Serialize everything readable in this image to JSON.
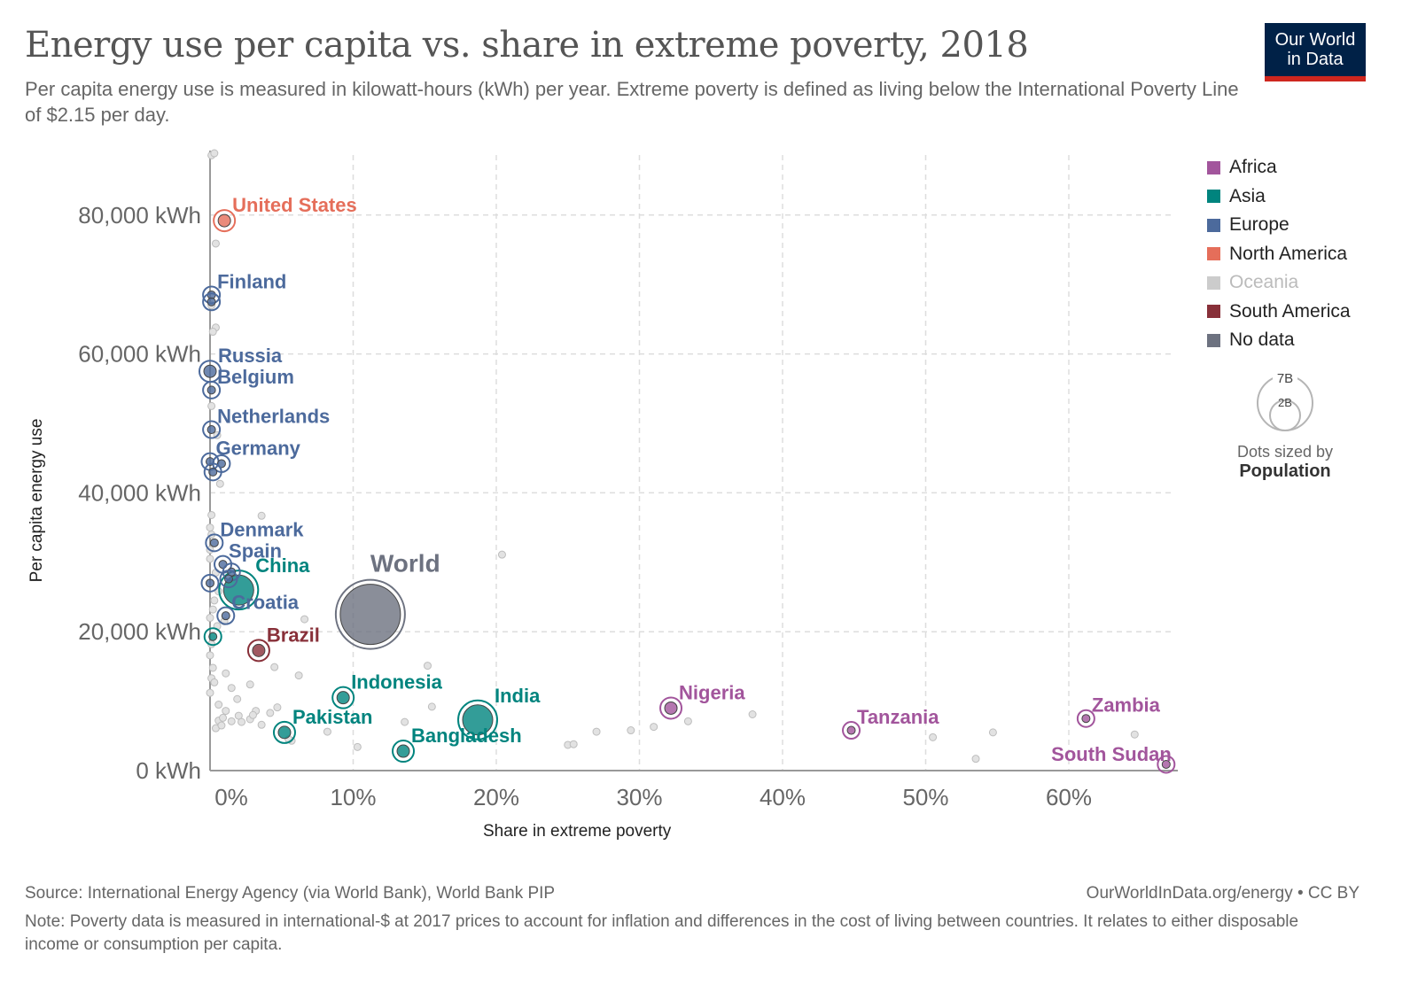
{
  "header": {
    "title": "Energy use per capita vs. share in extreme poverty, 2018",
    "subtitle": "Per capita energy use is measured in kilowatt-hours (kWh) per year. Extreme poverty is defined as living below the International Poverty Line of $2.15 per day.",
    "logo_line1": "Our World",
    "logo_line2": "in Data"
  },
  "legend": {
    "items": [
      {
        "label": "Africa",
        "color": "#a2559c"
      },
      {
        "label": "Asia",
        "color": "#00847e"
      },
      {
        "label": "Europe",
        "color": "#4c6a9c"
      },
      {
        "label": "North America",
        "color": "#e56e5a"
      },
      {
        "label": "Oceania",
        "color": "#cccccc",
        "muted": true
      },
      {
        "label": "South America",
        "color": "#883039"
      },
      {
        "label": "No data",
        "color": "#6d7280"
      }
    ],
    "size_legend": {
      "large_label": "7B",
      "small_label": "2B",
      "caption": "Dots sized by",
      "caption_bold": "Population"
    }
  },
  "footer": {
    "source": "Source: International Energy Agency (via World Bank), World Bank PIP",
    "credit": "OurWorldInData.org/energy • CC BY",
    "note": "Note: Poverty data is measured in international-$ at 2017 prices to account for inflation and differences in the cost of living between countries. It relates to either disposable income or consumption per capita."
  },
  "chart_data": {
    "type": "scatter",
    "title": "Energy use per capita vs. share in extreme poverty, 2018",
    "xlabel": "Share in extreme poverty",
    "ylabel": "Per capita energy use",
    "xlim": [
      0,
      67
    ],
    "ylim": [
      0,
      88000
    ],
    "x_ticks": [
      {
        "value": 0,
        "label": "0%"
      },
      {
        "value": 10,
        "label": "10%"
      },
      {
        "value": 20,
        "label": "20%"
      },
      {
        "value": 30,
        "label": "30%"
      },
      {
        "value": 40,
        "label": "40%"
      },
      {
        "value": 50,
        "label": "50%"
      },
      {
        "value": 60,
        "label": "60%"
      }
    ],
    "y_ticks": [
      {
        "value": 0,
        "label": "0 kWh"
      },
      {
        "value": 20000,
        "label": "20,000 kWh"
      },
      {
        "value": 40000,
        "label": "40,000 kWh"
      },
      {
        "value": 60000,
        "label": "60,000 kWh"
      },
      {
        "value": 80000,
        "label": "80,000 kWh"
      }
    ],
    "grid": true,
    "legend_position": "right",
    "size_variable": "Population",
    "labeled_points": [
      {
        "name": "United States",
        "region": "North America",
        "x": 1.0,
        "y": 79200,
        "pop_b": 0.33
      },
      {
        "name": "Finland",
        "region": "Europe",
        "x": 0.1,
        "y": 68500,
        "pop_b": 0.006
      },
      {
        "name": "Finland-2",
        "region": "Europe",
        "x": 0.1,
        "y": 67500,
        "pop_b": 0.006,
        "hide_label": true
      },
      {
        "name": "Russia",
        "region": "Europe",
        "x": 0.0,
        "y": 57500,
        "pop_b": 0.14
      },
      {
        "name": "Belgium",
        "region": "Europe",
        "x": 0.1,
        "y": 54800,
        "pop_b": 0.011
      },
      {
        "name": "Netherlands",
        "region": "Europe",
        "x": 0.1,
        "y": 49100,
        "pop_b": 0.017
      },
      {
        "name": "Germany",
        "region": "Europe",
        "x": 0.0,
        "y": 44500,
        "pop_b": 0.083
      },
      {
        "name": "Germany-2",
        "region": "Europe",
        "x": 0.8,
        "y": 44200,
        "pop_b": 0.01,
        "hide_label": true
      },
      {
        "name": "Germany-3",
        "region": "Europe",
        "x": 0.2,
        "y": 43000,
        "pop_b": 0.01,
        "hide_label": true
      },
      {
        "name": "Denmark",
        "region": "Europe",
        "x": 0.3,
        "y": 32800,
        "pop_b": 0.006
      },
      {
        "name": "Spain",
        "region": "Europe",
        "x": 0.9,
        "y": 29700,
        "pop_b": 0.047
      },
      {
        "name": "Europe-a",
        "region": "Europe",
        "x": 1.5,
        "y": 28600,
        "pop_b": 0.01,
        "hide_label": true
      },
      {
        "name": "Europe-b",
        "region": "Europe",
        "x": 1.3,
        "y": 27600,
        "pop_b": 0.01,
        "hide_label": true
      },
      {
        "name": "Europe-c",
        "region": "Europe",
        "x": 0.0,
        "y": 27000,
        "pop_b": 0.01,
        "hide_label": true
      },
      {
        "name": "China",
        "region": "Asia",
        "x": 2.0,
        "y": 26000,
        "pop_b": 1.4
      },
      {
        "name": "Croatia",
        "region": "Europe",
        "x": 1.1,
        "y": 22300,
        "pop_b": 0.004
      },
      {
        "name": "Asia-a",
        "region": "Asia",
        "x": 0.2,
        "y": 19300,
        "pop_b": 0.01,
        "hide_label": true
      },
      {
        "name": "Brazil",
        "region": "South America",
        "x": 3.4,
        "y": 17300,
        "pop_b": 0.21
      },
      {
        "name": "Indonesia",
        "region": "Asia",
        "x": 9.3,
        "y": 10500,
        "pop_b": 0.27
      },
      {
        "name": "Pakistan",
        "region": "Asia",
        "x": 5.2,
        "y": 5500,
        "pop_b": 0.22
      },
      {
        "name": "India",
        "region": "Asia",
        "x": 18.7,
        "y": 7300,
        "pop_b": 1.38
      },
      {
        "name": "Bangladesh",
        "region": "Asia",
        "x": 13.5,
        "y": 2800,
        "pop_b": 0.16
      },
      {
        "name": "Nigeria",
        "region": "Africa",
        "x": 32.2,
        "y": 9000,
        "pop_b": 0.2
      },
      {
        "name": "Tanzania",
        "region": "Africa",
        "x": 44.8,
        "y": 5800,
        "pop_b": 0.06
      },
      {
        "name": "Zambia",
        "region": "Africa",
        "x": 61.2,
        "y": 7500,
        "pop_b": 0.018
      },
      {
        "name": "South Sudan",
        "region": "Africa",
        "x": 66.8,
        "y": 900,
        "pop_b": 0.011
      },
      {
        "name": "World",
        "region": "No data",
        "x": 11.2,
        "y": 22500,
        "pop_b": 7.6
      }
    ],
    "background_points": [
      [
        0.1,
        88600
      ],
      [
        0.3,
        88900
      ],
      [
        0.4,
        75900
      ],
      [
        0.1,
        67000
      ],
      [
        0.4,
        63800
      ],
      [
        0.2,
        63200
      ],
      [
        0.1,
        52500
      ],
      [
        0.5,
        48300
      ],
      [
        0.7,
        41300
      ],
      [
        0.1,
        36800
      ],
      [
        3.6,
        36700
      ],
      [
        0.0,
        35000
      ],
      [
        0.1,
        34000
      ],
      [
        0.0,
        31800
      ],
      [
        20.4,
        31100
      ],
      [
        0.0,
        30500
      ],
      [
        0.4,
        28500
      ],
      [
        0.6,
        25800
      ],
      [
        0.3,
        24500
      ],
      [
        0.2,
        23200
      ],
      [
        0.0,
        22000
      ],
      [
        6.6,
        21800
      ],
      [
        1.0,
        21500
      ],
      [
        0.5,
        20800
      ],
      [
        0.1,
        18200
      ],
      [
        0.0,
        16600
      ],
      [
        0.2,
        14800
      ],
      [
        4.5,
        14900
      ],
      [
        15.2,
        15100
      ],
      [
        1.1,
        14000
      ],
      [
        6.2,
        13700
      ],
      [
        0.1,
        13300
      ],
      [
        0.3,
        12700
      ],
      [
        1.5,
        11900
      ],
      [
        2.8,
        12400
      ],
      [
        15.5,
        9200
      ],
      [
        0.0,
        11200
      ],
      [
        3.2,
        8600
      ],
      [
        4.7,
        9100
      ],
      [
        4.2,
        8300
      ],
      [
        0.6,
        9500
      ],
      [
        1.1,
        8600
      ],
      [
        1.9,
        10300
      ],
      [
        0.6,
        7200
      ],
      [
        0.9,
        7600
      ],
      [
        2.0,
        7900
      ],
      [
        2.2,
        7000
      ],
      [
        3.6,
        6600
      ],
      [
        2.8,
        7400
      ],
      [
        3.0,
        8000
      ],
      [
        1.5,
        7100
      ],
      [
        0.4,
        6100
      ],
      [
        0.8,
        6500
      ],
      [
        5.7,
        4300
      ],
      [
        5.5,
        4500
      ],
      [
        8.2,
        5600
      ],
      [
        13.6,
        7000
      ],
      [
        10.3,
        3400
      ],
      [
        25.0,
        3700
      ],
      [
        25.4,
        3800
      ],
      [
        27.0,
        5600
      ],
      [
        29.4,
        5800
      ],
      [
        31.0,
        6300
      ],
      [
        33.4,
        7100
      ],
      [
        37.9,
        8100
      ],
      [
        50.5,
        4800
      ],
      [
        53.5,
        1700
      ],
      [
        54.7,
        5500
      ],
      [
        64.6,
        5200
      ]
    ]
  }
}
